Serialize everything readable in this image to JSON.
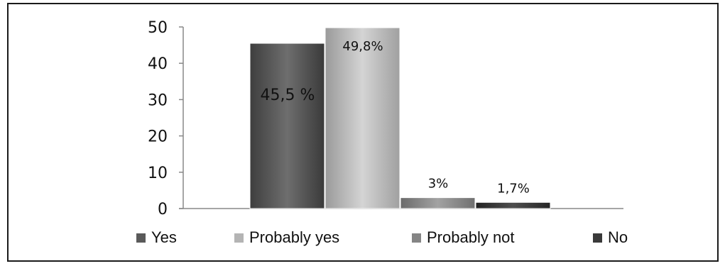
{
  "chart_data": {
    "type": "bar",
    "title": "",
    "xlabel": "",
    "ylabel": "",
    "ylim": [
      0,
      50
    ],
    "yticks": [
      0,
      10,
      20,
      30,
      40,
      50
    ],
    "grid": false,
    "legend_placement": "bottom",
    "series": [
      {
        "name": "Yes",
        "value": 45.5,
        "label": "45,5 %",
        "color": "#5a5a5a",
        "label_position": "inside"
      },
      {
        "name": "Probably yes",
        "value": 49.8,
        "label": "49,8%",
        "color": "#b4b4b4",
        "label_position": "inside"
      },
      {
        "name": "Probably not",
        "value": 3,
        "label": "3%",
        "color": "#858585",
        "label_position": "above"
      },
      {
        "name": "No",
        "value": 1.7,
        "label": "1,7%",
        "color": "#3a3a3a",
        "label_position": "above"
      }
    ]
  }
}
